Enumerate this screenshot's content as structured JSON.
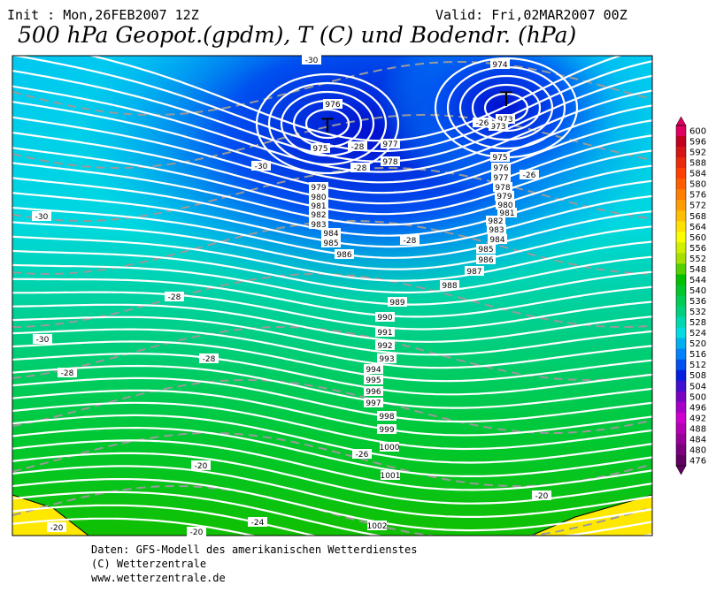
{
  "header": {
    "init": "Init : Mon,26FEB2007 12Z",
    "valid": "Valid: Fri,02MAR2007 00Z",
    "title": "500 hPa Geopot.(gpdm), T (C) und Bodendr. (hPa)"
  },
  "colorbar": {
    "labels": [
      600,
      596,
      592,
      588,
      584,
      580,
      576,
      572,
      568,
      564,
      560,
      556,
      552,
      548,
      544,
      540,
      536,
      532,
      528,
      524,
      520,
      516,
      512,
      508,
      504,
      500,
      496,
      492,
      488,
      484,
      480,
      476
    ]
  },
  "lows": [
    "T",
    "T"
  ],
  "pressure_labels": [
    974,
    976,
    975,
    973,
    973,
    977,
    978,
    975,
    976,
    977,
    978,
    979,
    980,
    981,
    979,
    980,
    981,
    982,
    983,
    984,
    985,
    986,
    982,
    983,
    984,
    985,
    986,
    987,
    988,
    989,
    990,
    991,
    992,
    993,
    994,
    995,
    996,
    997,
    998,
    999,
    1000,
    1001,
    1002
  ],
  "temperature_labels": [
    -30,
    -28,
    -28,
    -30,
    -30,
    -28,
    -28,
    -30,
    -28,
    -28,
    -26,
    -26,
    -26,
    -20,
    -20,
    -24,
    -20,
    -20
  ],
  "footer": [
    "Daten: GFS-Modell des amerikanischen Wetterdienstes",
    "(C) Wetterzentrale",
    "www.wetterzentrale.de"
  ]
}
